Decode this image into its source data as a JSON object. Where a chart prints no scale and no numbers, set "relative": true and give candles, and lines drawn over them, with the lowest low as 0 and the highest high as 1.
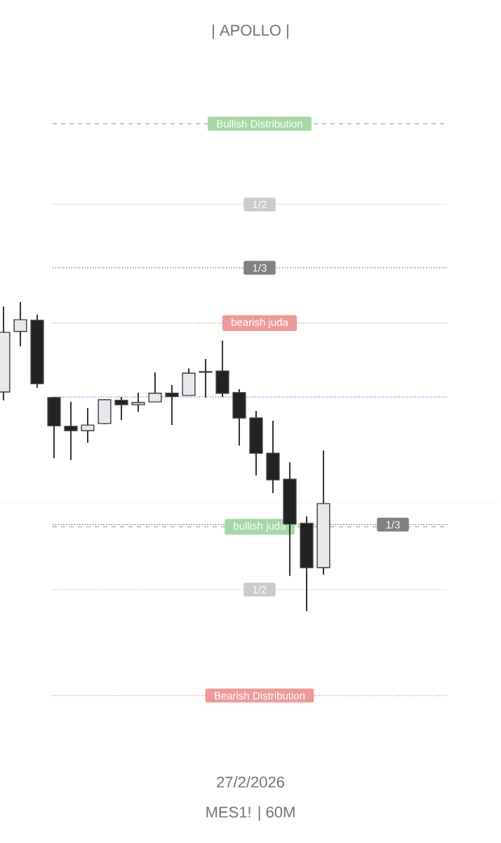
{
  "chart_data": {
    "type": "candlestick",
    "relative": true,
    "title": "|  APOLLO  |",
    "categories": [
      null,
      null,
      null,
      null,
      null,
      null,
      null,
      null,
      null,
      null,
      null,
      null,
      null,
      null,
      null,
      null,
      null,
      null,
      null,
      null
    ],
    "ohlc": [
      [
        0.709,
        0.986,
        0.682,
        0.902
      ],
      [
        0.905,
        1.0,
        0.857,
        0.943
      ],
      [
        0.941,
        0.959,
        0.723,
        0.736
      ],
      [
        0.691,
        0.693,
        0.495,
        0.6
      ],
      [
        0.598,
        0.677,
        0.489,
        0.584
      ],
      [
        0.584,
        0.657,
        0.545,
        0.602
      ],
      [
        0.607,
        0.686,
        0.605,
        0.684
      ],
      [
        0.682,
        0.693,
        0.618,
        0.668
      ],
      [
        0.668,
        0.707,
        0.645,
        0.675
      ],
      [
        0.677,
        0.773,
        0.677,
        0.705
      ],
      [
        0.705,
        0.732,
        0.602,
        0.695
      ],
      [
        0.698,
        0.786,
        0.698,
        0.77
      ],
      [
        0.773,
        0.816,
        0.691,
        0.775
      ],
      [
        0.777,
        0.875,
        0.693,
        0.705
      ],
      [
        0.707,
        0.718,
        0.536,
        0.625
      ],
      [
        0.625,
        0.648,
        0.439,
        0.511
      ],
      [
        0.511,
        0.616,
        0.382,
        0.425
      ],
      [
        0.427,
        0.482,
        0.114,
        0.282
      ],
      [
        0.284,
        0.307,
        0.0,
        0.141
      ],
      [
        0.141,
        0.52,
        0.118,
        0.348
      ]
    ],
    "ref_lines": [
      {
        "axis": "y",
        "value": 1.577,
        "label": "Bullish Distribution",
        "color": "#5cb85c",
        "line_style": "dashed"
      },
      {
        "axis": "y",
        "value": 1.316,
        "color": "#a0a0a8",
        "line_style": "dotted"
      },
      {
        "axis": "y",
        "value": 1.111,
        "color": "#1a1a1a",
        "line_style": "dotted"
      },
      {
        "axis": "y",
        "value": 0.932,
        "label": "bearish juda",
        "color": "#e04848",
        "line_style": "dotted"
      },
      {
        "axis": "y",
        "value": 0.693,
        "color": "#2233cc",
        "line_style": "dotted"
      },
      {
        "axis": "y",
        "value": 0.35,
        "color": "#dddddd",
        "line_style": "dotted"
      },
      {
        "axis": "y",
        "value": 0.28,
        "color": "#1a1a1a",
        "line_style": "dotted"
      },
      {
        "axis": "y",
        "value": 0.273,
        "label": "bullish juda",
        "color": "#5cb85c",
        "line_style": "dashed"
      },
      {
        "axis": "y",
        "value": 0.07,
        "color": "#a0a0a8",
        "line_style": "dotted"
      },
      {
        "axis": "y",
        "value": -0.273,
        "label": "Bearish Distribution",
        "color": "#e04848",
        "line_style": "dotted"
      }
    ],
    "annotations": [
      {
        "text": "1/2",
        "y": 1.316
      },
      {
        "text": "1/3",
        "y": 1.111
      },
      {
        "text": "1/3",
        "y": 0.28
      },
      {
        "text": "1/2",
        "y": 0.07
      },
      "27/2/2026",
      "MES1! | 60M"
    ]
  }
}
